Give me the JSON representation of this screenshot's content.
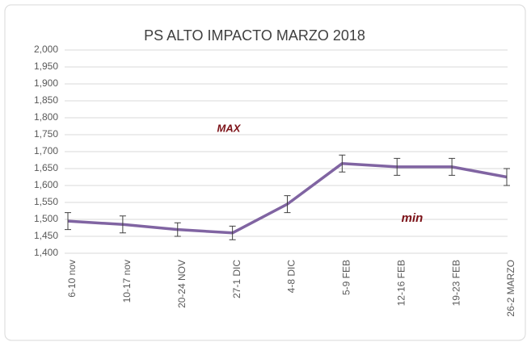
{
  "chart_data": {
    "type": "line",
    "title": "PS ALTO IMPACTO MARZO 2018",
    "categories": [
      "6-10 nov",
      "10-17 nov",
      "20-24 NOV",
      "27-1 DIC",
      "4-8 DIC",
      "5-9 FEB",
      "12-16 FEB",
      "19-23 FEB",
      "26-2  MARZO"
    ],
    "series": [
      {
        "name": "PS",
        "color": "#8064a2",
        "values": [
          1495,
          1485,
          1470,
          1460,
          1545,
          1665,
          1655,
          1655,
          1625
        ],
        "errors": [
          25,
          25,
          20,
          20,
          25,
          25,
          25,
          25,
          25
        ]
      }
    ],
    "ylim": [
      1400,
      2000
    ],
    "yticks": [
      {
        "value": 1400,
        "label": "1,400"
      },
      {
        "value": 1450,
        "label": "1,450"
      },
      {
        "value": 1500,
        "label": "1,500"
      },
      {
        "value": 1550,
        "label": "1,550"
      },
      {
        "value": 1600,
        "label": "1,600"
      },
      {
        "value": 1650,
        "label": "1,650"
      },
      {
        "value": 1700,
        "label": "1,700"
      },
      {
        "value": 1750,
        "label": "1,750"
      },
      {
        "value": 1800,
        "label": "1,800"
      },
      {
        "value": 1850,
        "label": "1,850"
      },
      {
        "value": 1900,
        "label": "1,900"
      },
      {
        "value": 1950,
        "label": "1,950"
      },
      {
        "value": 2000,
        "label": "2,000"
      }
    ],
    "grid": true,
    "annotations": [
      {
        "text": "MAX",
        "color": "#7b1016"
      },
      {
        "text": "min",
        "color": "#7b1016"
      }
    ]
  }
}
